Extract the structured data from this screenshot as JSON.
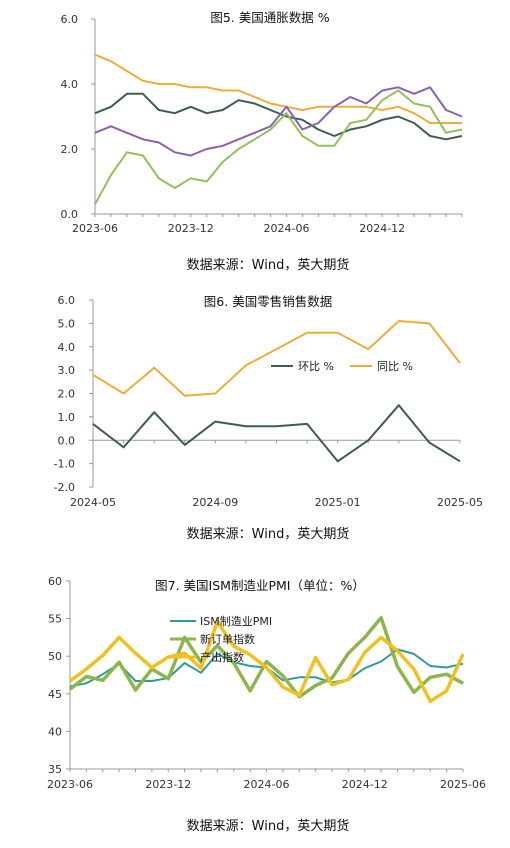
{
  "colors": {
    "dark_green": "#3d5e4d",
    "orange": "#f0ab3a",
    "purple": "#8b62ad",
    "light_green": "#92c05a",
    "red_tick": "#e0302a",
    "teal": "#2f9c9a",
    "olive_green": "#8db54b",
    "yellow": "#f0c020"
  },
  "chart_data": [
    {
      "type": "line",
      "title": "图5. 美国通胀数据 %",
      "source": "数据来源：Wind，英大期货",
      "ylim": [
        0,
        6
      ],
      "y_ticks": [
        "0.0",
        "2.0",
        "4.0",
        "6.0"
      ],
      "x_tick_labels": [
        "2023-06",
        "2023-12",
        "2024-06",
        "2024-12"
      ],
      "x_tick_index": [
        0,
        6,
        12,
        18
      ],
      "grid": false,
      "legend": "none",
      "series": [
        {
          "color": "dark_green",
          "values": [
            3.1,
            3.3,
            3.7,
            3.7,
            3.2,
            3.1,
            3.3,
            3.1,
            3.2,
            3.5,
            3.4,
            3.2,
            3.0,
            2.9,
            2.6,
            2.4,
            2.6,
            2.7,
            2.9,
            3.0,
            2.8,
            2.4,
            2.3,
            2.4
          ]
        },
        {
          "color": "orange",
          "values": [
            4.9,
            4.7,
            4.4,
            4.1,
            4.0,
            4.0,
            3.9,
            3.9,
            3.8,
            3.8,
            3.6,
            3.4,
            3.3,
            3.2,
            3.3,
            3.3,
            3.3,
            3.3,
            3.2,
            3.3,
            3.1,
            2.8,
            2.8,
            2.8
          ]
        },
        {
          "color": "purple",
          "values": [
            2.5,
            2.7,
            2.5,
            2.3,
            2.2,
            1.9,
            1.8,
            2.0,
            2.1,
            2.3,
            2.5,
            2.7,
            3.3,
            2.6,
            2.8,
            3.3,
            3.6,
            3.4,
            3.8,
            3.9,
            3.7,
            3.9,
            3.2,
            3.0
          ]
        },
        {
          "color": "light_green",
          "values": [
            0.3,
            1.2,
            1.9,
            1.8,
            1.1,
            0.8,
            1.1,
            1.0,
            1.6,
            2.0,
            2.3,
            2.6,
            3.1,
            2.4,
            2.1,
            2.1,
            2.8,
            2.9,
            3.5,
            3.8,
            3.4,
            3.3,
            2.5,
            2.6
          ]
        }
      ]
    },
    {
      "type": "line",
      "title": "图6. 美国零售销售数据",
      "source": "数据来源：Wind，英大期货",
      "ylim": [
        -2,
        6
      ],
      "y_ticks": [
        "-2.0",
        "-1.0",
        "0.0",
        "1.0",
        "2.0",
        "3.0",
        "4.0",
        "5.0",
        "6.0"
      ],
      "x_tick_labels": [
        "2024-05",
        "2024-09",
        "2025-01",
        "2025-05"
      ],
      "x_tick_index": [
        0,
        4,
        8,
        12
      ],
      "grid": false,
      "legend": "center-right",
      "series": [
        {
          "name": "环比 %",
          "color": "dark_green",
          "values": [
            0.7,
            -0.3,
            1.2,
            -0.2,
            0.8,
            0.6,
            0.6,
            0.7,
            -0.9,
            0.0,
            1.5,
            -0.1,
            -0.9
          ]
        },
        {
          "name": "同比 %",
          "color": "orange",
          "values": [
            2.8,
            2.0,
            3.1,
            1.9,
            2.0,
            3.2,
            3.9,
            4.6,
            4.6,
            3.9,
            5.1,
            5.0,
            3.3
          ]
        }
      ]
    },
    {
      "type": "line",
      "title": "图7. 美国ISM制造业PMI（单位：%）",
      "source": "数据来源：Wind，英大期货",
      "ylim": [
        35,
        60
      ],
      "y_ticks": [
        "35",
        "40",
        "45",
        "50",
        "55",
        "60"
      ],
      "x_tick_labels": [
        "2023-06",
        "2023-12",
        "2024-06",
        "2024-12",
        "2025-06"
      ],
      "x_tick_index": [
        0,
        6,
        12,
        18,
        24
      ],
      "grid": false,
      "legend": "top-center",
      "series": [
        {
          "name": "ISM制造业PMI",
          "color": "teal",
          "values": [
            46.0,
            46.4,
            47.6,
            49.0,
            46.7,
            46.7,
            47.1,
            49.1,
            47.8,
            50.3,
            49.2,
            48.7,
            48.5,
            46.8,
            47.2,
            47.2,
            46.5,
            46.9,
            48.4,
            49.3,
            50.9,
            50.3,
            48.7,
            48.5,
            49.0
          ]
        },
        {
          "name": "新订单指数",
          "color": "olive_green",
          "values": [
            45.6,
            47.3,
            46.8,
            49.2,
            45.5,
            48.3,
            47.0,
            52.5,
            49.2,
            51.4,
            49.1,
            45.4,
            49.3,
            47.4,
            44.6,
            46.1,
            47.1,
            50.4,
            52.5,
            55.1,
            48.6,
            45.2,
            47.2,
            47.6,
            46.4
          ]
        },
        {
          "name": "产出指数",
          "color": "yellow",
          "values": [
            46.7,
            48.3,
            50.1,
            52.5,
            50.4,
            48.5,
            49.9,
            50.4,
            48.4,
            54.6,
            51.3,
            50.2,
            48.5,
            45.9,
            44.8,
            49.8,
            46.2,
            46.9,
            50.5,
            52.5,
            50.7,
            48.3,
            44.0,
            45.4,
            50.3
          ]
        }
      ]
    }
  ]
}
